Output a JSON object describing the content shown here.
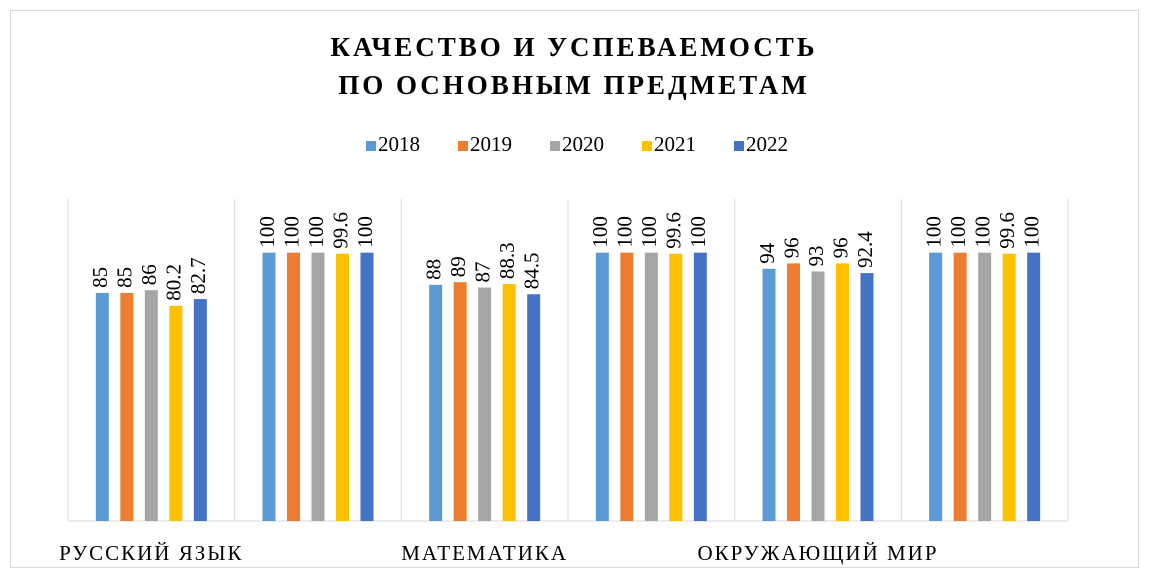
{
  "chart_data": {
    "type": "bar",
    "title": "КАЧЕСТВО И УСПЕВАЕМОСТЬ\nПО ОСНОВНЫМ ПРЕДМЕТАМ",
    "categories": [
      "РУССКИЙ ЯЗЫК",
      null,
      "МАТЕМАТИКА",
      null,
      "ОКРУЖАЮЩИЙ МИР",
      null
    ],
    "series": [
      {
        "name": "2018",
        "color": "#5B9BD5",
        "values": [
          85,
          100,
          88,
          100,
          94,
          100
        ]
      },
      {
        "name": "2019",
        "color": "#ED7D31",
        "values": [
          85,
          100,
          89,
          100,
          96,
          100
        ]
      },
      {
        "name": "2020",
        "color": "#A5A5A5",
        "values": [
          86,
          100,
          87,
          100,
          93,
          100
        ]
      },
      {
        "name": "2021",
        "color": "#FFC000",
        "values": [
          80.2,
          99.6,
          88.3,
          99.6,
          96,
          99.6
        ]
      },
      {
        "name": "2022",
        "color": "#4472C4",
        "values": [
          82.7,
          100,
          84.5,
          100,
          92.4,
          100
        ]
      }
    ],
    "ylim": [
      0,
      120
    ],
    "legend": "top"
  }
}
